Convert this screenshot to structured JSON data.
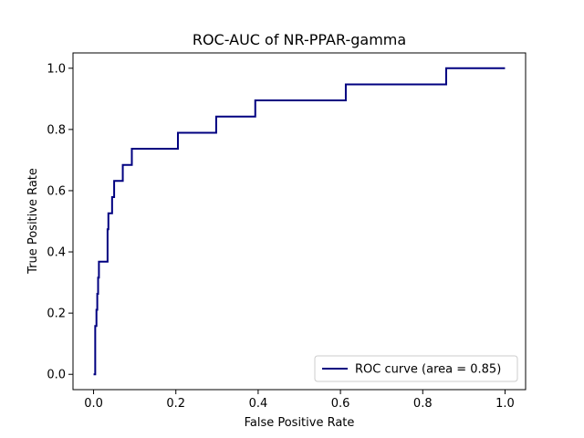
{
  "chart_data": {
    "type": "line",
    "title": "ROC-AUC of NR-PPAR-gamma",
    "xlabel": "False Positive Rate",
    "ylabel": "True Positive Rate",
    "xlim": [
      -0.05,
      1.05
    ],
    "ylim": [
      -0.05,
      1.05
    ],
    "xticks": [
      0.0,
      0.2,
      0.4,
      0.6,
      0.8,
      1.0
    ],
    "yticks": [
      0.0,
      0.2,
      0.4,
      0.6,
      0.8,
      1.0
    ],
    "xtick_labels": [
      "0.0",
      "0.2",
      "0.4",
      "0.6",
      "0.8",
      "1.0"
    ],
    "ytick_labels": [
      "0.0",
      "0.2",
      "0.4",
      "0.6",
      "0.8",
      "1.0"
    ],
    "grid": false,
    "legend_position": "lower-right",
    "series": [
      {
        "name": "ROC curve (area = 0.85)",
        "color": "#000080",
        "x": [
          0.0,
          0.004,
          0.004,
          0.007,
          0.007,
          0.009,
          0.009,
          0.011,
          0.011,
          0.013,
          0.013,
          0.034,
          0.034,
          0.036,
          0.036,
          0.045,
          0.045,
          0.05,
          0.05,
          0.071,
          0.071,
          0.093,
          0.093,
          0.205,
          0.205,
          0.298,
          0.298,
          0.393,
          0.393,
          0.613,
          0.613,
          0.857,
          0.857,
          1.0
        ],
        "y": [
          0.0,
          0.0,
          0.158,
          0.158,
          0.211,
          0.211,
          0.263,
          0.263,
          0.316,
          0.316,
          0.368,
          0.368,
          0.474,
          0.474,
          0.526,
          0.526,
          0.579,
          0.579,
          0.632,
          0.632,
          0.684,
          0.684,
          0.737,
          0.737,
          0.789,
          0.789,
          0.842,
          0.842,
          0.895,
          0.895,
          0.947,
          0.947,
          1.0,
          1.0
        ]
      }
    ]
  }
}
